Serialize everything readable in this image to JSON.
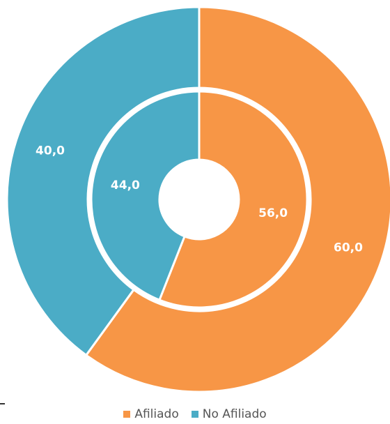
{
  "chart_data": {
    "type": "pie",
    "variant": "nested-donut",
    "title": "",
    "categories": [
      "Afiliado",
      "No Afiliado"
    ],
    "colors": [
      "#F79646",
      "#4BACC6"
    ],
    "series": [
      {
        "ring": "outer",
        "values": [
          60.0,
          40.0
        ],
        "labels": [
          "60,0",
          "40,0"
        ]
      },
      {
        "ring": "inner",
        "values": [
          56.0,
          44.0
        ],
        "labels": [
          "56,0",
          "44,0"
        ]
      }
    ],
    "legend_position": "bottom"
  },
  "legend": {
    "items": [
      {
        "label": "Afiliado",
        "color": "#F79646"
      },
      {
        "label": "No Afiliado",
        "color": "#4BACC6"
      }
    ]
  }
}
